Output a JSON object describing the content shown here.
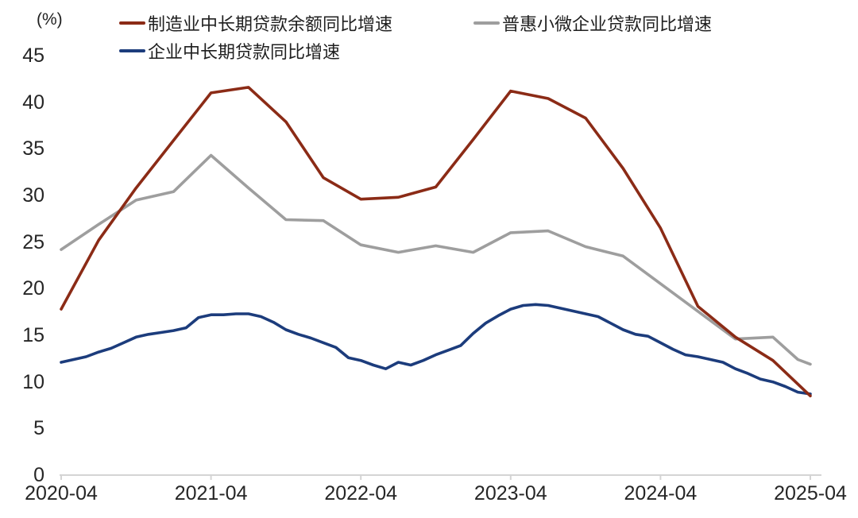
{
  "colors": {
    "axis": "#d4d4d4",
    "text": "#262626",
    "manufacturing": "#8b2b16",
    "inclusive": "#9e9e9e",
    "enterprise": "#1c3c7c"
  },
  "chart_data": {
    "type": "line",
    "title": "",
    "ylabel": "(%)",
    "xlabel": "",
    "grid": false,
    "legend_position": "top",
    "ylim": [
      0,
      45
    ],
    "y_ticks": [
      0,
      5,
      10,
      15,
      20,
      25,
      30,
      35,
      40,
      45
    ],
    "x_range": [
      "2020-04",
      "2025-04"
    ],
    "x_unit": "months since 2020-04",
    "x_ticks": [
      0,
      12,
      24,
      36,
      48,
      60
    ],
    "x_tick_labels": [
      "2020-04",
      "2021-04",
      "2022-04",
      "2023-04",
      "2024-04",
      "2025-04"
    ],
    "series": [
      {
        "id": "manufacturing-mlt-loans",
        "name": "制造业中长期贷款余额同比增速",
        "color": "#8b2b16",
        "points": [
          [
            0,
            17.8
          ],
          [
            3,
            25.2
          ],
          [
            6,
            30.8
          ],
          [
            9,
            35.9
          ],
          [
            12,
            41.0
          ],
          [
            15,
            41.6
          ],
          [
            18,
            37.9
          ],
          [
            21,
            31.9
          ],
          [
            24,
            29.6
          ],
          [
            27,
            29.8
          ],
          [
            30,
            30.9
          ],
          [
            33,
            36.0
          ],
          [
            36,
            41.2
          ],
          [
            39,
            40.4
          ],
          [
            42,
            38.3
          ],
          [
            45,
            32.9
          ],
          [
            48,
            26.5
          ],
          [
            51,
            18.1
          ],
          [
            54,
            14.8
          ],
          [
            57,
            12.3
          ],
          [
            60,
            8.5
          ]
        ]
      },
      {
        "id": "inclusive-msme-loans",
        "name": "普惠小微企业贷款同比增速",
        "color": "#9e9e9e",
        "points": [
          [
            0,
            24.2
          ],
          [
            3,
            26.9
          ],
          [
            6,
            29.5
          ],
          [
            9,
            30.4
          ],
          [
            12,
            34.3
          ],
          [
            15,
            30.8
          ],
          [
            18,
            27.4
          ],
          [
            21,
            27.3
          ],
          [
            24,
            24.7
          ],
          [
            27,
            23.9
          ],
          [
            30,
            24.6
          ],
          [
            33,
            23.9
          ],
          [
            36,
            26.0
          ],
          [
            39,
            26.2
          ],
          [
            42,
            24.5
          ],
          [
            45,
            23.5
          ],
          [
            54,
            14.6
          ],
          [
            57,
            14.8
          ],
          [
            59,
            12.4
          ],
          [
            60,
            11.9
          ]
        ]
      },
      {
        "id": "enterprise-mlt-loans",
        "name": "企业中长期贷款同比增速",
        "color": "#1c3c7c",
        "points": [
          [
            0,
            12.1
          ],
          [
            1,
            12.4
          ],
          [
            2,
            12.7
          ],
          [
            3,
            13.2
          ],
          [
            4,
            13.6
          ],
          [
            5,
            14.2
          ],
          [
            6,
            14.8
          ],
          [
            7,
            15.1
          ],
          [
            8,
            15.3
          ],
          [
            9,
            15.5
          ],
          [
            10,
            15.8
          ],
          [
            11,
            16.9
          ],
          [
            12,
            17.2
          ],
          [
            13,
            17.2
          ],
          [
            14,
            17.3
          ],
          [
            15,
            17.3
          ],
          [
            16,
            17.0
          ],
          [
            17,
            16.4
          ],
          [
            18,
            15.6
          ],
          [
            19,
            15.1
          ],
          [
            20,
            14.7
          ],
          [
            21,
            14.2
          ],
          [
            22,
            13.7
          ],
          [
            23,
            12.6
          ],
          [
            24,
            12.3
          ],
          [
            25,
            11.8
          ],
          [
            26,
            11.4
          ],
          [
            27,
            12.1
          ],
          [
            28,
            11.8
          ],
          [
            29,
            12.3
          ],
          [
            30,
            12.9
          ],
          [
            31,
            13.4
          ],
          [
            32,
            13.9
          ],
          [
            33,
            15.2
          ],
          [
            34,
            16.3
          ],
          [
            35,
            17.1
          ],
          [
            36,
            17.8
          ],
          [
            37,
            18.2
          ],
          [
            38,
            18.3
          ],
          [
            39,
            18.2
          ],
          [
            40,
            17.9
          ],
          [
            41,
            17.6
          ],
          [
            42,
            17.3
          ],
          [
            43,
            17.0
          ],
          [
            44,
            16.3
          ],
          [
            45,
            15.6
          ],
          [
            46,
            15.1
          ],
          [
            47,
            14.9
          ],
          [
            48,
            14.2
          ],
          [
            49,
            13.5
          ],
          [
            50,
            12.9
          ],
          [
            51,
            12.7
          ],
          [
            52,
            12.4
          ],
          [
            53,
            12.1
          ],
          [
            54,
            11.4
          ],
          [
            55,
            10.9
          ],
          [
            56,
            10.3
          ],
          [
            57,
            10.0
          ],
          [
            58,
            9.5
          ],
          [
            59,
            8.9
          ],
          [
            60,
            8.7
          ]
        ]
      }
    ]
  }
}
